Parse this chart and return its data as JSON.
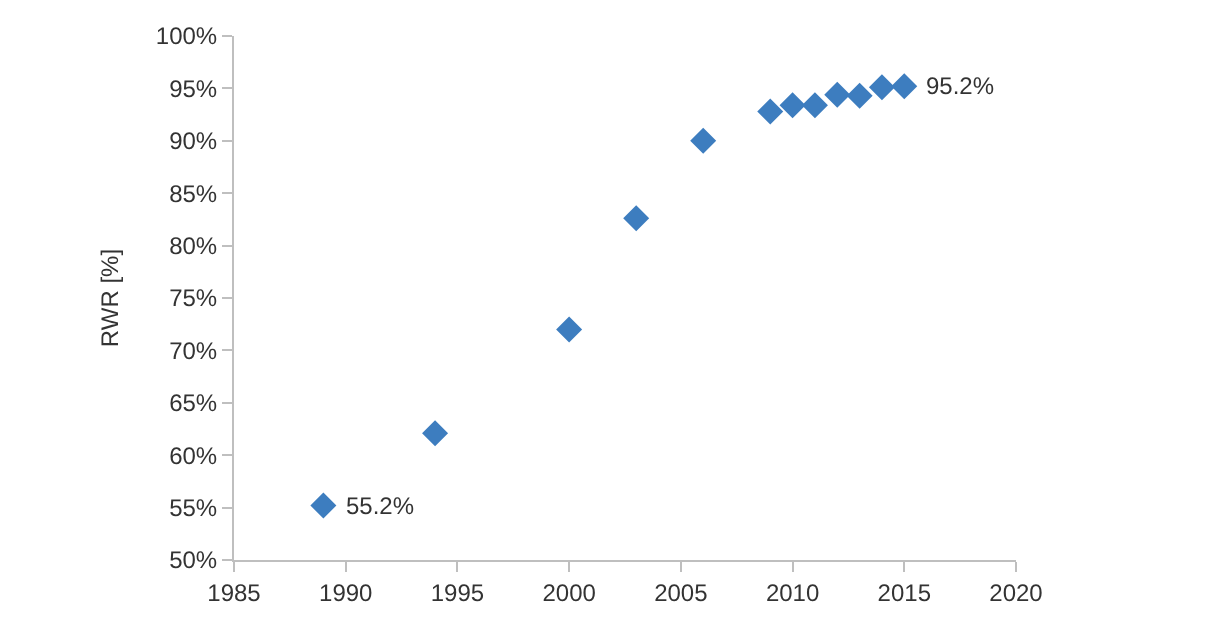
{
  "chart_data": {
    "type": "scatter",
    "ylabel": "RWR [%]",
    "x": [
      1989,
      1994,
      2000,
      2003,
      2006,
      2009,
      2010,
      2011,
      2012,
      2013,
      2014,
      2015
    ],
    "series": [
      {
        "color": "#3d7dbf",
        "values": [
          55.2,
          62.1,
          72.0,
          82.6,
          90.0,
          92.8,
          93.4,
          93.4,
          94.4,
          94.3,
          95.1,
          95.2
        ]
      }
    ],
    "marker": "diamond",
    "xlim": [
      1985,
      2020
    ],
    "xticks": [
      1985,
      1990,
      1995,
      2000,
      2005,
      2010,
      2015,
      2020
    ],
    "ylim": [
      50,
      100
    ],
    "yticks": [
      {
        "value": 50,
        "label": "50%"
      },
      {
        "value": 55,
        "label": "55%"
      },
      {
        "value": 60,
        "label": "60%"
      },
      {
        "value": 65,
        "label": "65%"
      },
      {
        "value": 70,
        "label": "70%"
      },
      {
        "value": 75,
        "label": "75%"
      },
      {
        "value": 80,
        "label": "80%"
      },
      {
        "value": 85,
        "label": "85%"
      },
      {
        "value": 90,
        "label": "90%"
      },
      {
        "value": 95,
        "label": "95%"
      },
      {
        "value": 100,
        "label": "100%"
      }
    ],
    "annotations": [
      {
        "text": "55.2%",
        "x": 1989,
        "y": 55.2
      },
      {
        "text": "95.2%",
        "x": 2015,
        "y": 95.2
      }
    ]
  }
}
